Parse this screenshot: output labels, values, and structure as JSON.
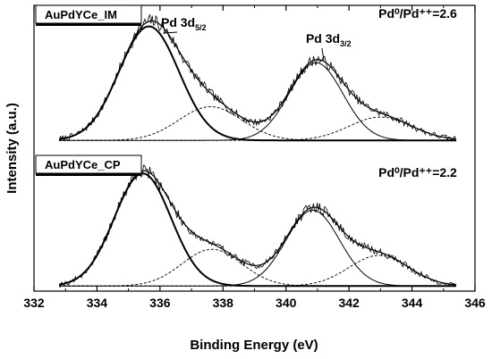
{
  "chart_data": {
    "type": "line",
    "xlabel": "Binding Energy (eV)",
    "ylabel": "Intensity (a.u.)",
    "xlim": [
      332,
      346
    ],
    "xticks": [
      "332",
      "334",
      "336",
      "338",
      "340",
      "342",
      "344",
      "346"
    ],
    "x_ticks": [
      332,
      334,
      336,
      338,
      340,
      342,
      344,
      346
    ],
    "y_ticks_shown": false,
    "units": "a.u.",
    "panels": [
      {
        "label": "AuPdYCe_IM",
        "ratio_text": "Pd⁰/Pd⁺⁺=2.6",
        "annotations": [
          {
            "main": "Pd 3d",
            "sub": "5/2",
            "x": 336.6
          },
          {
            "main": "Pd 3d",
            "sub": "3/2",
            "x": 341.2
          }
        ],
        "ylim": [
          0,
          1.0
        ],
        "components": [
          {
            "center": 335.65,
            "height": 0.88,
            "width": 0.95
          },
          {
            "center": 337.6,
            "height": 0.26,
            "width": 1.0
          },
          {
            "center": 340.95,
            "height": 0.6,
            "width": 0.85
          },
          {
            "center": 343.0,
            "height": 0.18,
            "width": 1.0
          }
        ],
        "background": 0.04,
        "noise_amplitude": 0.035,
        "seed": 7
      },
      {
        "label": "AuPdYCe_CP",
        "ratio_text": "Pd⁰/Pd⁺⁺=2.2",
        "annotations": [],
        "ylim": [
          0,
          1.0
        ],
        "components": [
          {
            "center": 335.45,
            "height": 0.92,
            "width": 0.9
          },
          {
            "center": 337.65,
            "height": 0.3,
            "width": 0.95
          },
          {
            "center": 340.85,
            "height": 0.62,
            "width": 0.85
          },
          {
            "center": 342.95,
            "height": 0.25,
            "width": 0.95
          }
        ],
        "background": 0.02,
        "noise_amplitude": 0.035,
        "seed": 19
      }
    ]
  },
  "colors": {
    "axis": "#000000",
    "fit_line": "#000000",
    "data_line": "#000000"
  }
}
